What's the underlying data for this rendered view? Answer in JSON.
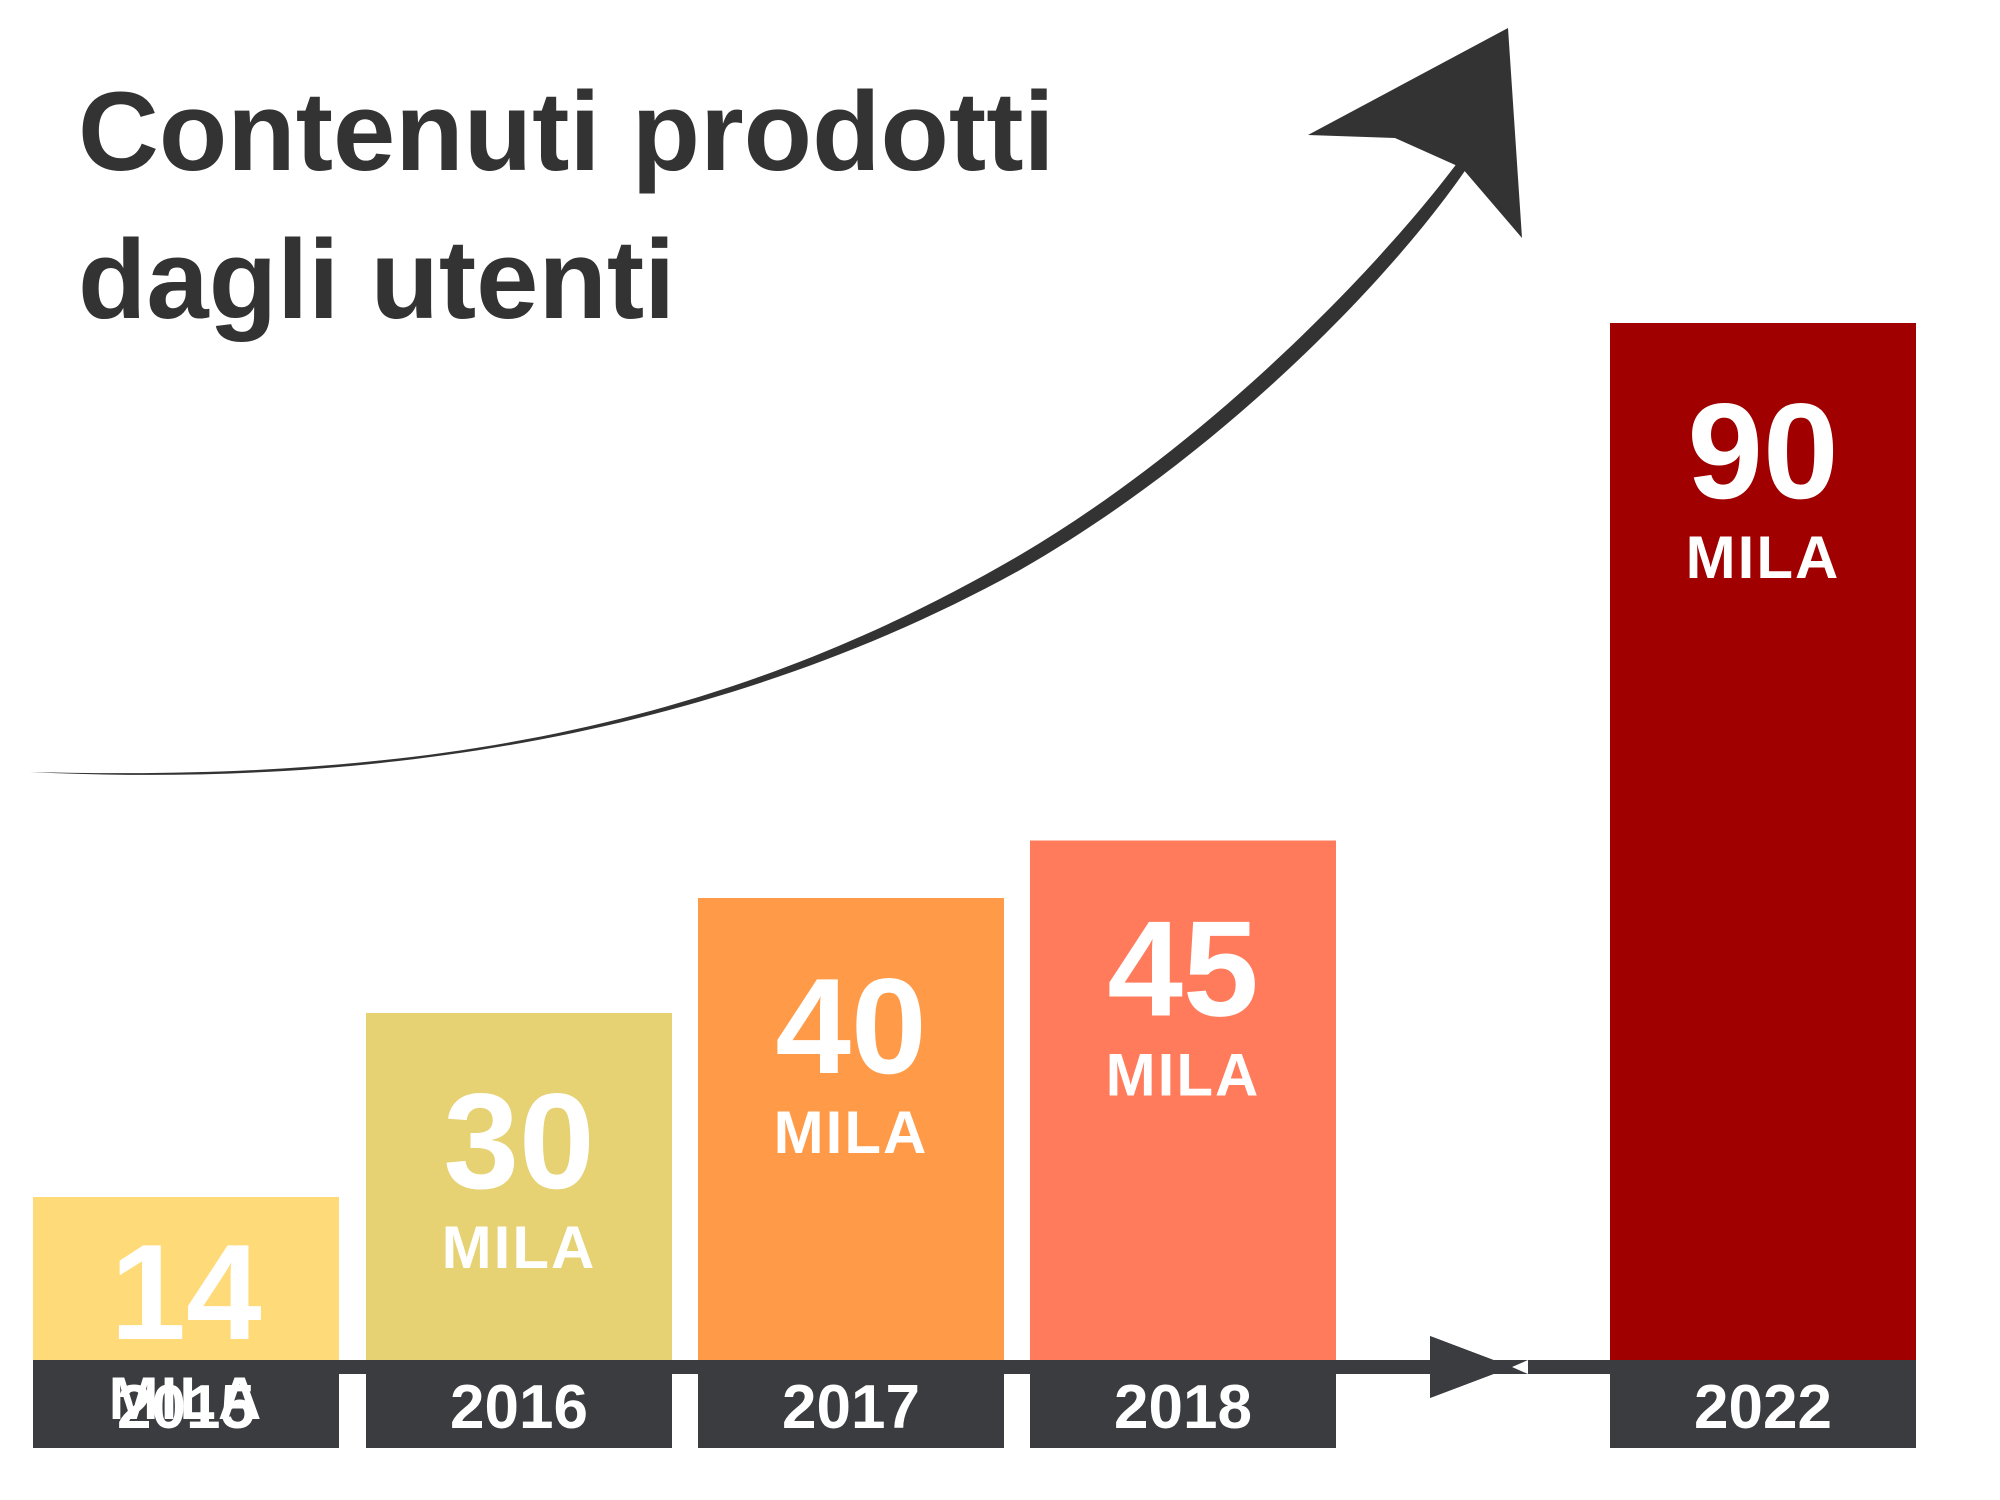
{
  "chart_data": {
    "type": "bar",
    "title_lines": [
      "Contenuti prodotti",
      "dagli utenti"
    ],
    "categories": [
      "2015",
      "2016",
      "2017",
      "2018",
      "2022"
    ],
    "values": [
      14,
      30,
      40,
      45,
      90
    ],
    "value_labels": [
      "14",
      "30",
      "40",
      "45",
      "90"
    ],
    "unit_label": "MILA",
    "ylim": [
      0,
      100
    ],
    "grid": false,
    "colors": {
      "bars": [
        "#FFDA78",
        "#E6D173",
        "#FF9B48",
        "#FF7B5C",
        "#A00000"
      ],
      "axis": "#3A3C40",
      "arrow": "#333333",
      "title": "#333333",
      "text": "#ffffff"
    }
  }
}
